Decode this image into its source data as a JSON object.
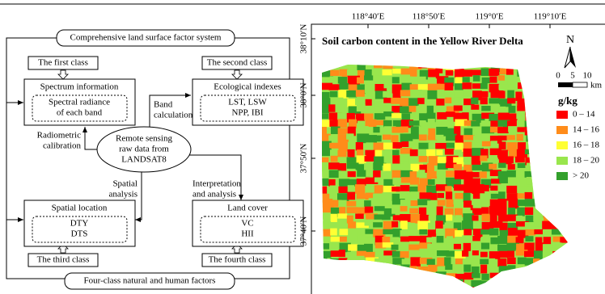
{
  "diagram": {
    "top_label": "Comprehensive land surface factor system",
    "bottom_label": "Four-class natural and human factors",
    "classes": [
      {
        "label": "The first class",
        "title": "Spectrum information",
        "content": [
          "Spectral radiance",
          "of each band"
        ]
      },
      {
        "label": "The second class",
        "title": "Ecological indexes",
        "content": [
          "LST, LSW",
          "NPP, IBI"
        ]
      },
      {
        "label": "The third class",
        "title": "Spatial location",
        "content": [
          "DTY",
          "DTS"
        ]
      },
      {
        "label": "The fourth class",
        "title": "Land cover",
        "content": [
          "VC",
          "HII"
        ]
      }
    ],
    "center": [
      "Remote sensing",
      "raw data from",
      "LANDSAT8"
    ],
    "edges": {
      "band": [
        "Band",
        "calculation"
      ],
      "radiometric": [
        "Radiometric",
        "calibration"
      ],
      "spatial": [
        "Spatial",
        "analysis"
      ],
      "interpretation": [
        "Interpretation",
        "and analysis"
      ]
    }
  },
  "map": {
    "title": "Soil carbon content in the Yellow River Delta",
    "lon_ticks": [
      "118°40′E",
      "118°50′E",
      "119°0′E",
      "119°10′E"
    ],
    "lat_ticks": [
      "38°10′N",
      "38°0′N",
      "37°50′N",
      "37°40′N"
    ],
    "north": "N",
    "scale": [
      "0",
      "5",
      "10",
      "km"
    ],
    "legend_title": "g/kg",
    "legend": [
      {
        "label": "0 – 14",
        "color": "#ff0000"
      },
      {
        "label": "14 – 16",
        "color": "#ff8c1a"
      },
      {
        "label": "16 – 18",
        "color": "#ffff33"
      },
      {
        "label": "18 – 20",
        "color": "#99e64d"
      },
      {
        "label": "> 20",
        "color": "#33a02c"
      }
    ]
  }
}
